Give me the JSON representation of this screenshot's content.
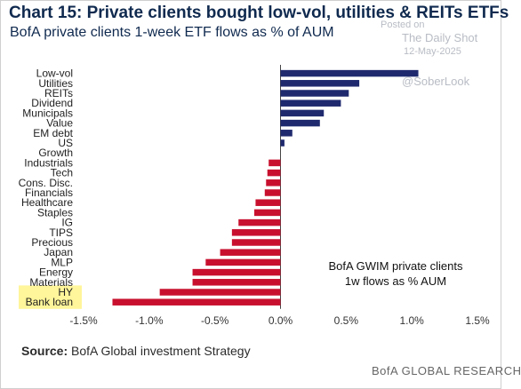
{
  "header": {
    "title": "Chart 15: Private clients bought low-vol, utilities & REITs ETFs",
    "subtitle": "BofA private clients 1-week ETF flows as % of AUM"
  },
  "watermark": {
    "posted": "Posted on",
    "site": "The Daily Shot",
    "date": "12-May-2025",
    "handle": "@SoberLook"
  },
  "annotation": {
    "line1": "BofA GWIM private clients",
    "line2": "1w flows as % AUM"
  },
  "footer": {
    "source_label": "Source:",
    "source_text": "BofA Global investment Strategy",
    "brand": "BofA GLOBAL RESEARCH"
  },
  "colors": {
    "positive": "#1f2a6e",
    "negative": "#c8102e",
    "highlight": "#fff59a",
    "text": "#102a4f"
  },
  "chart_data": {
    "type": "bar",
    "orientation": "horizontal",
    "categories": [
      "Low-vol",
      "Utilities",
      "REITs",
      "Dividend",
      "Municipals",
      "Value",
      "EM debt",
      "US",
      "Growth",
      "Industrials",
      "Tech",
      "Cons. Disc.",
      "Financials",
      "Healthcare",
      "Staples",
      "IG",
      "TIPS",
      "Precious",
      "Japan",
      "MLP",
      "Energy",
      "Materials",
      "HY",
      "Bank loan"
    ],
    "values": [
      1.05,
      0.6,
      0.52,
      0.46,
      0.33,
      0.3,
      0.09,
      0.03,
      0.0,
      -0.09,
      -0.1,
      -0.11,
      -0.12,
      -0.19,
      -0.2,
      -0.32,
      -0.37,
      -0.37,
      -0.46,
      -0.57,
      -0.67,
      -0.67,
      -0.92,
      -1.28
    ],
    "highlighted": [
      "HY",
      "Bank loan"
    ],
    "xlim": [
      -1.5,
      1.5
    ],
    "xticks": [
      "-1.5%",
      "-1.0%",
      "-0.5%",
      "0.0%",
      "0.5%",
      "1.0%",
      "1.5%"
    ],
    "tick_values": [
      -1.5,
      -1.0,
      -0.5,
      0.0,
      0.5,
      1.0,
      1.5
    ]
  }
}
